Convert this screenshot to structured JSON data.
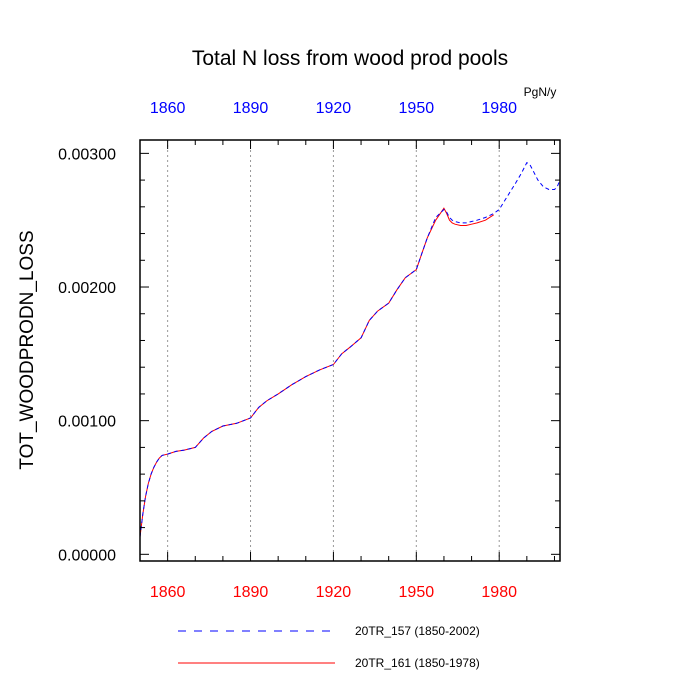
{
  "chart_data": {
    "type": "line",
    "title": "Total N loss from wood prod pools",
    "units_label": "PgN/y",
    "ylabel": "TOT_WOODPRODN_LOSS",
    "xlabel": "",
    "xlim": [
      1850,
      2002
    ],
    "ylim": [
      -5e-05,
      0.0031
    ],
    "x_ticks": [
      1860,
      1890,
      1920,
      1950,
      1980
    ],
    "x_tick_labels": [
      "1860",
      "1890",
      "1920",
      "1950",
      "1980"
    ],
    "y_ticks": [
      0,
      0.001,
      0.002,
      0.003
    ],
    "y_tick_labels": [
      "0.00000",
      "0.00100",
      "0.00200",
      "0.00300"
    ],
    "grid": "vertical-dotted",
    "legend_position": "bottom",
    "series": [
      {
        "name": "20TR_157 (1850-2002)",
        "color": "#0000ff",
        "style": "dashed",
        "x": [
          1850,
          1851,
          1852,
          1853,
          1854,
          1855,
          1856,
          1857,
          1858,
          1860,
          1863,
          1866,
          1870,
          1873,
          1876,
          1880,
          1885,
          1890,
          1893,
          1896,
          1900,
          1905,
          1910,
          1915,
          1920,
          1923,
          1926,
          1930,
          1933,
          1936,
          1940,
          1943,
          1946,
          1950,
          1952,
          1954,
          1957,
          1960,
          1961,
          1962,
          1963,
          1964,
          1966,
          1968,
          1970,
          1972,
          1975,
          1978,
          1980,
          1983,
          1986,
          1988,
          1990,
          1991,
          1992,
          1994,
          1996,
          1998,
          2000,
          2001,
          2002
        ],
        "y": [
          0.00013,
          0.0003,
          0.00043,
          0.00053,
          0.0006,
          0.00065,
          0.00069,
          0.00072,
          0.00074,
          0.00075,
          0.00077,
          0.00078,
          0.0008,
          0.00087,
          0.00092,
          0.00096,
          0.00098,
          0.00102,
          0.0011,
          0.00115,
          0.0012,
          0.00127,
          0.00133,
          0.00138,
          0.00142,
          0.0015,
          0.00155,
          0.00162,
          0.00175,
          0.00182,
          0.00188,
          0.00198,
          0.00207,
          0.00213,
          0.00225,
          0.00237,
          0.00252,
          0.00258,
          0.00256,
          0.00252,
          0.0025,
          0.00249,
          0.00248,
          0.00248,
          0.00249,
          0.0025,
          0.00252,
          0.00255,
          0.00258,
          0.00268,
          0.00278,
          0.00285,
          0.00293,
          0.00292,
          0.00288,
          0.0028,
          0.00275,
          0.00273,
          0.00273,
          0.00275,
          0.0028
        ]
      },
      {
        "name": "20TR_161 (1850-1978)",
        "color": "#ff0000",
        "style": "solid",
        "x": [
          1850,
          1851,
          1852,
          1853,
          1854,
          1855,
          1856,
          1857,
          1858,
          1860,
          1863,
          1866,
          1870,
          1873,
          1876,
          1880,
          1885,
          1890,
          1893,
          1896,
          1900,
          1905,
          1910,
          1915,
          1920,
          1923,
          1926,
          1930,
          1933,
          1936,
          1940,
          1943,
          1946,
          1950,
          1952,
          1954,
          1957,
          1960,
          1961,
          1962,
          1963,
          1964,
          1966,
          1968,
          1970,
          1972,
          1975,
          1978
        ],
        "y": [
          0.00013,
          0.0003,
          0.00043,
          0.00053,
          0.0006,
          0.00065,
          0.00069,
          0.00072,
          0.00074,
          0.00075,
          0.00077,
          0.00078,
          0.0008,
          0.00087,
          0.00092,
          0.00096,
          0.00098,
          0.00102,
          0.0011,
          0.00115,
          0.0012,
          0.00127,
          0.00133,
          0.00138,
          0.00142,
          0.0015,
          0.00155,
          0.00162,
          0.00175,
          0.00182,
          0.00188,
          0.00198,
          0.00207,
          0.00213,
          0.00225,
          0.00237,
          0.0025,
          0.00259,
          0.00255,
          0.0025,
          0.00248,
          0.00247,
          0.00246,
          0.00246,
          0.00247,
          0.00248,
          0.0025,
          0.00254
        ]
      }
    ]
  }
}
